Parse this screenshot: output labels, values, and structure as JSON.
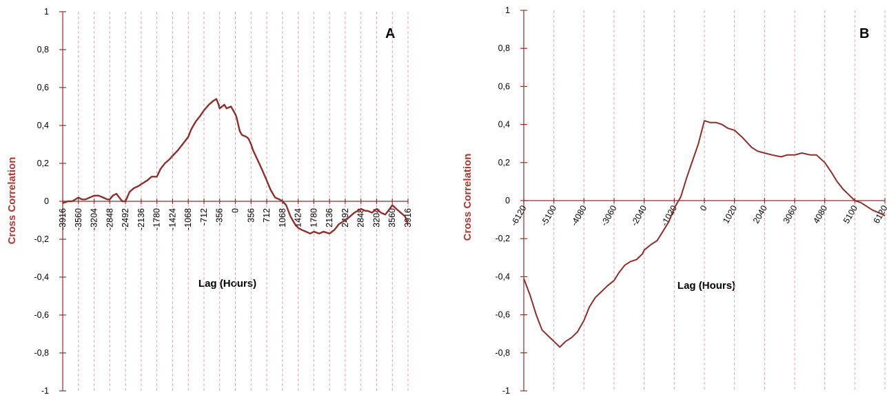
{
  "colors": {
    "series": "#8b2e2b",
    "axis": "#8b2e2b",
    "ylabel": "#a83a32",
    "grid": "#e3a3a3"
  },
  "chart_data": [
    {
      "type": "line",
      "panel_label": "A",
      "ylabel": "Cross Correlation",
      "xlabel": "Lag (Hours)",
      "ylim": [
        -1,
        1
      ],
      "xlim": [
        -3916,
        3916
      ],
      "y_ticks": [
        "1",
        "0,8",
        "0,6",
        "0,4",
        "0,2",
        "0",
        "-0,2",
        "-0,4",
        "-0,6",
        "-0,8",
        "-1"
      ],
      "x_ticks": [
        "-3916",
        "-3560",
        "-3204",
        "-2848",
        "-2492",
        "-2136",
        "-1780",
        "-1424",
        "-1068",
        "-712",
        "-356",
        "0",
        "356",
        "712",
        "1068",
        "1424",
        "1780",
        "2136",
        "2492",
        "2848",
        "3204",
        "3560",
        "3916"
      ],
      "grid": "vertical dashed",
      "series": [
        {
          "x": [
            -3916,
            -3800,
            -3700,
            -3560,
            -3480,
            -3400,
            -3300,
            -3204,
            -3100,
            -3000,
            -2900,
            -2848,
            -2780,
            -2700,
            -2600,
            -2560,
            -2492,
            -2400,
            -2300,
            -2200,
            -2136,
            -2000,
            -1900,
            -1780,
            -1700,
            -1600,
            -1500,
            -1424,
            -1300,
            -1200,
            -1068,
            -1000,
            -900,
            -800,
            -712,
            -600,
            -500,
            -430,
            -380,
            -356,
            -300,
            -250,
            -200,
            -100,
            -50,
            0,
            30,
            100,
            150,
            250,
            300,
            356,
            400,
            500,
            600,
            712,
            800,
            900,
            1000,
            1068,
            1150,
            1250,
            1350,
            1424,
            1500,
            1600,
            1700,
            1780,
            1900,
            2000,
            2136,
            2250,
            2350,
            2492,
            2600,
            2700,
            2848,
            2950,
            3000,
            3100,
            3204,
            3300,
            3400,
            3500,
            3560,
            3650,
            3750,
            3850,
            3916
          ],
          "y": [
            -0.01,
            0.0,
            0.0,
            0.02,
            0.01,
            0.01,
            0.02,
            0.03,
            0.03,
            0.02,
            0.01,
            0.01,
            0.03,
            0.04,
            0.01,
            0.0,
            0.0,
            0.05,
            0.07,
            0.08,
            0.09,
            0.11,
            0.13,
            0.13,
            0.17,
            0.2,
            0.22,
            0.24,
            0.27,
            0.3,
            0.34,
            0.38,
            0.42,
            0.45,
            0.48,
            0.51,
            0.53,
            0.54,
            0.51,
            0.49,
            0.5,
            0.51,
            0.49,
            0.5,
            0.48,
            0.46,
            0.44,
            0.37,
            0.35,
            0.34,
            0.33,
            0.3,
            0.27,
            0.22,
            0.17,
            0.11,
            0.06,
            0.02,
            0.01,
            0.0,
            -0.02,
            -0.08,
            -0.12,
            -0.14,
            -0.15,
            -0.16,
            -0.17,
            -0.16,
            -0.17,
            -0.16,
            -0.17,
            -0.15,
            -0.12,
            -0.1,
            -0.08,
            -0.06,
            -0.04,
            -0.05,
            -0.05,
            -0.06,
            -0.04,
            -0.06,
            -0.07,
            -0.04,
            -0.02,
            -0.04,
            -0.06,
            -0.08,
            -0.12
          ]
        }
      ]
    },
    {
      "type": "line",
      "panel_label": "B",
      "ylabel": "Cross Correlation",
      "xlabel": "Lag (Hours)",
      "ylim": [
        -1,
        1
      ],
      "xlim": [
        -6120,
        6120
      ],
      "y_ticks": [
        "1",
        "0,8",
        "0,6",
        "0,4",
        "0,2",
        "0",
        "-0,2",
        "-0,4",
        "-0,6",
        "-0,8",
        "-1"
      ],
      "x_ticks": [
        "-6120",
        "-5100",
        "-4080",
        "-3060",
        "-2040",
        "-1020",
        "0",
        "1020",
        "2040",
        "3060",
        "4080",
        "5100",
        "6120"
      ],
      "grid": "vertical dashed",
      "series": [
        {
          "x": [
            -6120,
            -5900,
            -5700,
            -5500,
            -5300,
            -5100,
            -4900,
            -4700,
            -4500,
            -4300,
            -4080,
            -3900,
            -3700,
            -3500,
            -3300,
            -3060,
            -2900,
            -2700,
            -2500,
            -2300,
            -2100,
            -2040,
            -1800,
            -1600,
            -1400,
            -1200,
            -1020,
            -800,
            -600,
            -400,
            -200,
            0,
            200,
            400,
            600,
            800,
            1020,
            1300,
            1600,
            1800,
            2040,
            2300,
            2600,
            2800,
            3060,
            3300,
            3600,
            3800,
            4080,
            4300,
            4500,
            4700,
            4900,
            5100,
            5300,
            5500,
            5700,
            6000,
            6120
          ],
          "y": [
            -0.41,
            -0.5,
            -0.6,
            -0.68,
            -0.71,
            -0.74,
            -0.77,
            -0.74,
            -0.72,
            -0.69,
            -0.63,
            -0.56,
            -0.51,
            -0.48,
            -0.45,
            -0.42,
            -0.38,
            -0.34,
            -0.32,
            -0.31,
            -0.28,
            -0.26,
            -0.23,
            -0.21,
            -0.16,
            -0.11,
            -0.04,
            0.02,
            0.12,
            0.21,
            0.3,
            0.42,
            0.41,
            0.41,
            0.4,
            0.38,
            0.37,
            0.33,
            0.28,
            0.26,
            0.25,
            0.24,
            0.23,
            0.24,
            0.24,
            0.25,
            0.24,
            0.24,
            0.2,
            0.15,
            0.1,
            0.06,
            0.03,
            0.0,
            -0.01,
            -0.03,
            -0.05,
            -0.07,
            -0.08
          ]
        }
      ]
    }
  ]
}
